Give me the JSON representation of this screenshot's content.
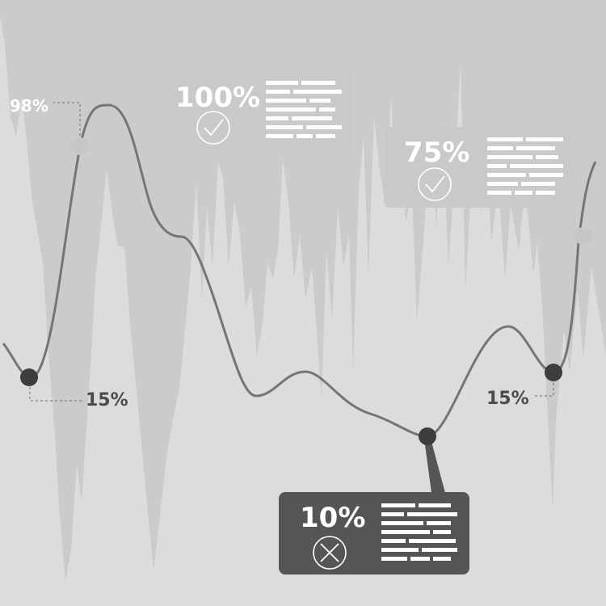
{
  "chart_data": {
    "type": "line",
    "title": "",
    "xlabel": "",
    "ylabel": "",
    "ylim": [
      0,
      100
    ],
    "series": [
      {
        "values": [
          15,
          98,
          100,
          55,
          40,
          36,
          25,
          10,
          42,
          15,
          75
        ]
      }
    ],
    "markers": [
      {
        "index": 0,
        "value_label": "15%",
        "style": "dark"
      },
      {
        "index": 1,
        "value_label": "98%",
        "style": "light"
      },
      {
        "index": 7,
        "value_label": "10%",
        "style": "dark"
      },
      {
        "index": 9,
        "value_label": "15%",
        "style": "dark"
      },
      {
        "index": 10,
        "value_label": "75%",
        "style": "light"
      }
    ],
    "callouts": [
      {
        "value": "100%",
        "icon": "check-icon",
        "style": "light"
      },
      {
        "value": "75%",
        "icon": "check-icon",
        "style": "light"
      },
      {
        "value": "10%",
        "icon": "cross-icon",
        "style": "dark"
      }
    ]
  },
  "colors": {
    "background": "#dcdcdc",
    "spikes": "#cbcbcb",
    "line": "#757575",
    "dark_point": "#3d3d3d",
    "light_point": "#c6c6c6",
    "light_box": "#c9c9c9",
    "dark_box": "#555555",
    "text_white": "#ffffff",
    "text_dark": "#4b4b4b"
  }
}
